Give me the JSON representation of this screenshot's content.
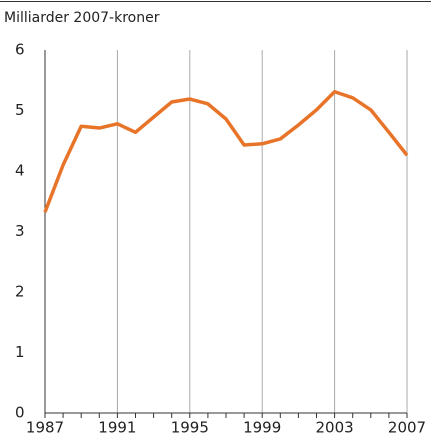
{
  "chart_data": {
    "type": "line",
    "title": "Milliarder 2007-kroner",
    "x": [
      1987,
      1988,
      1989,
      1990,
      1991,
      1992,
      1993,
      1994,
      1995,
      1996,
      1997,
      1998,
      1999,
      2000,
      2001,
      2002,
      2003,
      2004,
      2005,
      2006,
      2007
    ],
    "series": [
      {
        "name": "Milliarder 2007-kroner",
        "color": "#e8742a",
        "values": [
          3.32,
          4.1,
          4.74,
          4.71,
          4.78,
          4.64,
          4.89,
          5.14,
          5.19,
          5.11,
          4.86,
          4.43,
          4.45,
          4.53,
          4.76,
          5.01,
          5.31,
          5.21,
          5.01,
          4.64,
          4.26
        ]
      }
    ],
    "xlim": [
      1987,
      2007
    ],
    "xticks": [
      1987,
      1991,
      1995,
      1999,
      2003,
      2007
    ],
    "ylim": [
      0,
      6
    ],
    "yticks": [
      0,
      1,
      2,
      3,
      4,
      5,
      6
    ],
    "grid": true
  }
}
